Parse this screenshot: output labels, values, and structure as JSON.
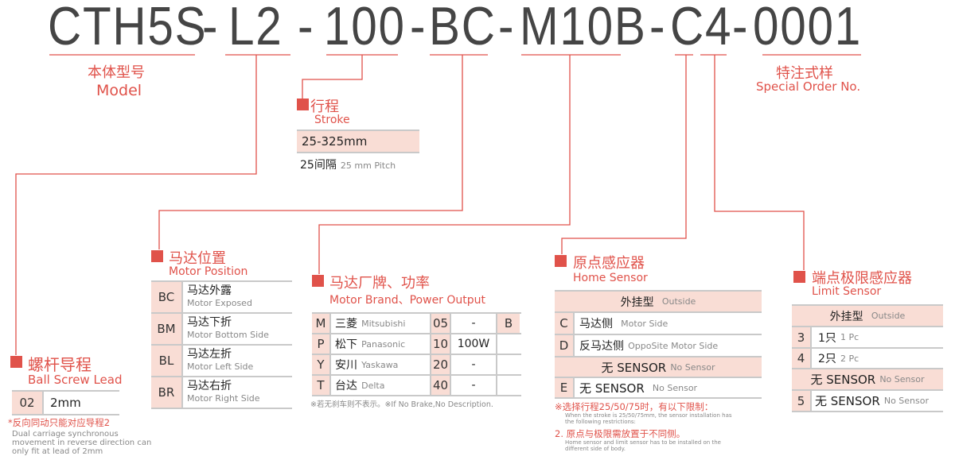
{
  "code": {
    "segments": [
      "CTH5S",
      "-",
      "L2",
      "-",
      "100",
      "-",
      "BC",
      "-",
      "M10B",
      "-",
      "C4",
      "-",
      "0001"
    ]
  },
  "model": {
    "cn": "本体型号",
    "en": "Model"
  },
  "special": {
    "cn": "特注式样",
    "en": "Special Order No."
  },
  "stroke": {
    "cn": "行程",
    "en": "Stroke",
    "range": "25-325mm",
    "pitch_cn": "25间隔",
    "pitch_en": "25 mm Pitch"
  },
  "lead": {
    "cn": "螺杆导程",
    "en": "Ball Screw Lead",
    "rows": [
      {
        "code": "02",
        "value": "2mm"
      }
    ],
    "note_cn": "*反向同动只能对应导程2",
    "note_en": [
      "Dual carriage synchronous",
      "movement in reverse direction can",
      "only fit at lead of 2mm"
    ]
  },
  "motor_position": {
    "cn": "马达位置",
    "en": "Motor Position",
    "rows": [
      {
        "code": "BC",
        "cn": "马达外露",
        "en": "Motor Exposed"
      },
      {
        "code": "BM",
        "cn": "马达下折",
        "en": "Motor Bottom Side"
      },
      {
        "code": "BL",
        "cn": "马达左折",
        "en": "Motor Left Side"
      },
      {
        "code": "BR",
        "cn": "马达右折",
        "en": "Motor Right Side"
      }
    ]
  },
  "motor_brand": {
    "cn": "马达厂牌、功率",
    "en": "Motor Brand、Power Output",
    "rows": [
      {
        "code": "M",
        "cn": "三菱",
        "en": "Mitsubishi",
        "power": "05",
        "watt": "-",
        "brake": "B"
      },
      {
        "code": "P",
        "cn": "松下",
        "en": "Panasonic",
        "power": "10",
        "watt": "100W",
        "brake": ""
      },
      {
        "code": "Y",
        "cn": "安川",
        "en": "Yaskawa",
        "power": "20",
        "watt": "-",
        "brake": ""
      },
      {
        "code": "T",
        "cn": "台达",
        "en": "Delta",
        "power": "40",
        "watt": "-",
        "brake": ""
      }
    ],
    "note": "※若无刹车则不表示。※If No Brake,No Description."
  },
  "home_sensor": {
    "cn": "原点感应器",
    "en": "Home Sensor",
    "header": {
      "cn": "外挂型",
      "en": "Outside"
    },
    "rows": [
      {
        "code": "C",
        "cn": "马达侧",
        "en": "Motor Side"
      },
      {
        "code": "D",
        "cn": "反马达侧",
        "en": "OppoSite Motor Side"
      }
    ],
    "header2": {
      "cn": "无 SENSOR",
      "en": "No Sensor"
    },
    "rows2": [
      {
        "code": "E",
        "cn": "无 SENSOR",
        "en": "No Sensor"
      }
    ],
    "note1_cn": "※选择行程25/50/75时，有以下限制：",
    "note1_en": [
      "When the stroke is 25/50/75mm, the sensor installation has",
      "the following restrictions:"
    ],
    "note2_cn": "2. 原点与极限需放置于不同侧。",
    "note2_en": [
      "Home sensor and limit sensor has to be installed on the",
      "different side of body."
    ]
  },
  "limit_sensor": {
    "cn": "端点极限感应器",
    "en": "Limit Sensor",
    "header": {
      "cn": "外挂型",
      "en": "Outside"
    },
    "rows": [
      {
        "code": "3",
        "cn": "1只",
        "en": "1 Pc"
      },
      {
        "code": "4",
        "cn": "2只",
        "en": "2 Pc"
      }
    ],
    "header2": {
      "cn": "无 SENSOR",
      "en": "No Sensor"
    },
    "rows2": [
      {
        "code": "5",
        "cn": "无 SENSOR",
        "en": "No Sensor"
      }
    ]
  },
  "colors": {
    "accent": "#e0524a",
    "cell_fill": "#f9ddd5",
    "title_text": "#454545"
  }
}
